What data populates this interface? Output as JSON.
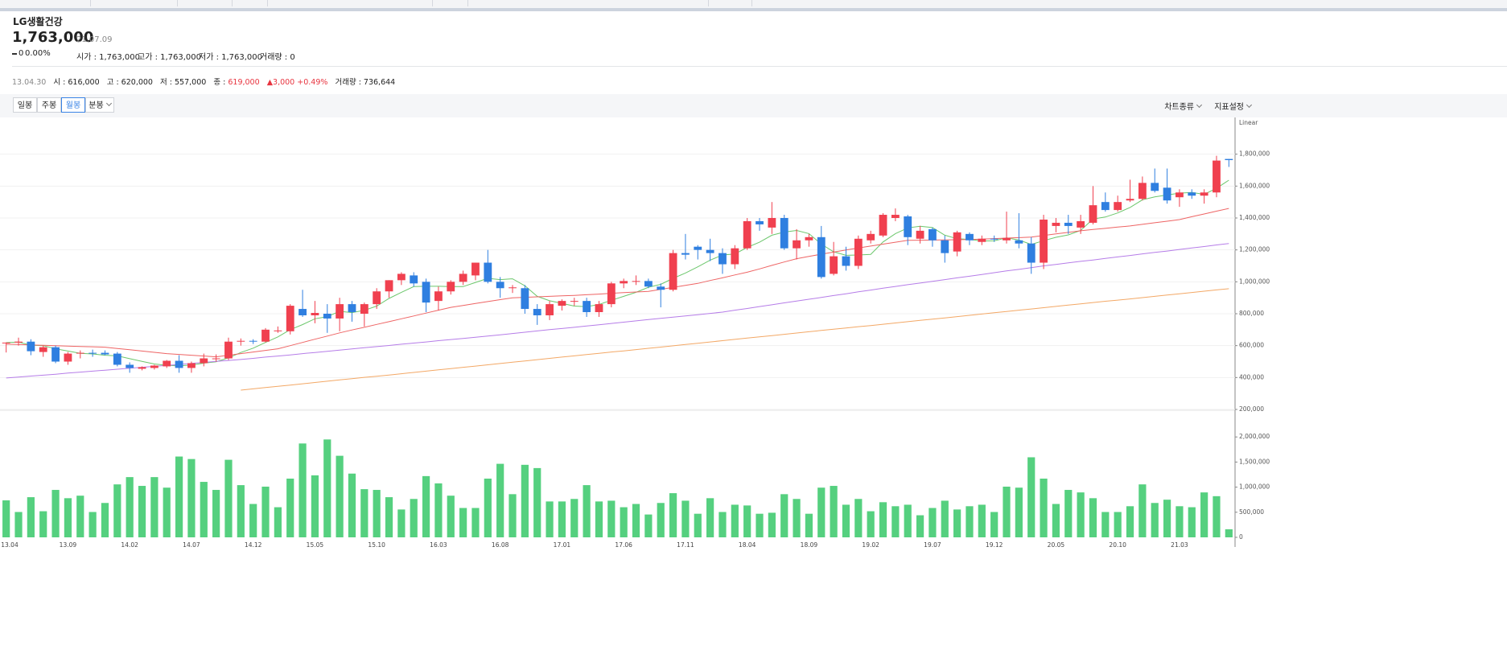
{
  "header": {
    "name": "LG생활건강",
    "price": "1,763,000",
    "date": "21.07.09",
    "change": "0",
    "change_rate": "0.00%",
    "open": "시가 : 1,763,000",
    "high": "고가 : 1,763,000",
    "low": "저가 : 1,763,000",
    "volume": "거래량 : 0"
  },
  "info": {
    "date": "13.04.30",
    "open": "시 : 616,000",
    "high": "고 : 620,000",
    "low": "저 : 557,000",
    "close_label": "종 :",
    "close": "619,000",
    "change": "▲3,000",
    "change_rate": "+0.49%",
    "volume": "거래량 : 736,644"
  },
  "toolbar": {
    "periods": [
      "일봉",
      "주봉",
      "월봉",
      "분봉"
    ],
    "selected": 2,
    "chart_type": "차트종류",
    "indicators": "지표설정"
  },
  "chart_data": {
    "type": "candlestick",
    "scale_label": "Linear",
    "up_color": "#f0404f",
    "down_color": "#2f7fe0",
    "volume_color": "#55d07f",
    "grid": true,
    "categories": [
      "13.04",
      null,
      null,
      null,
      null,
      "13.09",
      null,
      null,
      null,
      null,
      "14.02",
      null,
      null,
      null,
      null,
      "14.07",
      null,
      null,
      null,
      null,
      "14.12",
      null,
      null,
      null,
      null,
      "15.05",
      null,
      null,
      null,
      null,
      "15.10",
      null,
      null,
      null,
      null,
      "16.03",
      null,
      null,
      null,
      null,
      "16.08",
      null,
      null,
      null,
      null,
      "17.01",
      null,
      null,
      null,
      null,
      "17.06",
      null,
      null,
      null,
      null,
      "17.11",
      null,
      null,
      null,
      null,
      "18.04",
      null,
      null,
      null,
      null,
      "18.09",
      null,
      null,
      null,
      null,
      "19.02",
      null,
      null,
      null,
      null,
      "19.07",
      null,
      null,
      null,
      null,
      "19.12",
      null,
      null,
      null,
      null,
      "20.05",
      null,
      null,
      null,
      null,
      "20.10",
      null,
      null,
      null,
      null,
      "21.03",
      null,
      null,
      null,
      null
    ],
    "open": [
      616000,
      619000,
      625000,
      560000,
      590000,
      500000,
      550000,
      555000,
      555000,
      550000,
      480000,
      455000,
      460000,
      470000,
      505000,
      460000,
      490000,
      515000,
      520000,
      625000,
      630000,
      625000,
      690000,
      690000,
      830000,
      790000,
      800000,
      770000,
      860000,
      800000,
      860000,
      940000,
      1010000,
      1040000,
      1000000,
      880000,
      940000,
      1000000,
      1040000,
      1120000,
      1000000,
      960000,
      960000,
      830000,
      790000,
      850000,
      875000,
      880000,
      810000,
      860000,
      990000,
      1000000,
      1005000,
      970000,
      950000,
      1180000,
      1220000,
      1200000,
      1180000,
      1110000,
      1210000,
      1380000,
      1340000,
      1400000,
      1210000,
      1260000,
      1280000,
      1050000,
      1160000,
      1100000,
      1260000,
      1290000,
      1400000,
      1410000,
      1270000,
      1330000,
      1260000,
      1190000,
      1300000,
      1250000,
      1270000,
      1260000,
      1260000,
      1240000,
      1120000,
      1350000,
      1370000,
      1340000,
      1370000,
      1500000,
      1450000,
      1510000,
      1520000,
      1620000,
      1590000,
      1530000,
      1560000,
      1540000,
      1560000,
      1770000
    ],
    "high": [
      620000,
      650000,
      640000,
      600000,
      600000,
      560000,
      570000,
      575000,
      570000,
      560000,
      495000,
      470000,
      480000,
      510000,
      540000,
      500000,
      550000,
      545000,
      650000,
      645000,
      640000,
      710000,
      720000,
      860000,
      950000,
      880000,
      860000,
      900000,
      880000,
      870000,
      960000,
      1010000,
      1060000,
      1060000,
      1020000,
      970000,
      1010000,
      1070000,
      1120000,
      1200000,
      1030000,
      980000,
      980000,
      860000,
      880000,
      890000,
      900000,
      900000,
      880000,
      1000000,
      1020000,
      1040000,
      1020000,
      990000,
      1200000,
      1300000,
      1230000,
      1270000,
      1210000,
      1230000,
      1400000,
      1400000,
      1500000,
      1420000,
      1330000,
      1300000,
      1350000,
      1250000,
      1220000,
      1290000,
      1320000,
      1430000,
      1460000,
      1420000,
      1350000,
      1340000,
      1290000,
      1320000,
      1310000,
      1290000,
      1290000,
      1440000,
      1430000,
      1280000,
      1420000,
      1400000,
      1420000,
      1420000,
      1600000,
      1560000,
      1540000,
      1640000,
      1660000,
      1710000,
      1710000,
      1580000,
      1580000,
      1580000,
      1790000,
      1770000
    ],
    "low": [
      557000,
      600000,
      540000,
      530000,
      490000,
      480000,
      520000,
      530000,
      540000,
      470000,
      430000,
      445000,
      450000,
      460000,
      430000,
      430000,
      470000,
      500000,
      510000,
      600000,
      610000,
      620000,
      680000,
      670000,
      780000,
      740000,
      680000,
      690000,
      750000,
      720000,
      830000,
      900000,
      980000,
      970000,
      810000,
      820000,
      920000,
      980000,
      1010000,
      990000,
      900000,
      930000,
      800000,
      730000,
      760000,
      820000,
      850000,
      780000,
      780000,
      840000,
      960000,
      980000,
      960000,
      840000,
      940000,
      1140000,
      1140000,
      1130000,
      1050000,
      1080000,
      1200000,
      1320000,
      1300000,
      1200000,
      1140000,
      1220000,
      1020000,
      1040000,
      1070000,
      1080000,
      1240000,
      1280000,
      1380000,
      1230000,
      1240000,
      1220000,
      1120000,
      1160000,
      1230000,
      1230000,
      1250000,
      1240000,
      1210000,
      1050000,
      1080000,
      1310000,
      1300000,
      1300000,
      1360000,
      1440000,
      1440000,
      1500000,
      1510000,
      1560000,
      1490000,
      1470000,
      1520000,
      1490000,
      1530000,
      1720000
    ],
    "close": [
      619000,
      625000,
      565000,
      590000,
      500000,
      550000,
      555000,
      550000,
      545000,
      480000,
      460000,
      465000,
      475000,
      505000,
      460000,
      490000,
      520000,
      520000,
      625000,
      630000,
      625000,
      700000,
      695000,
      850000,
      790000,
      805000,
      770000,
      860000,
      810000,
      860000,
      940000,
      1010000,
      1050000,
      990000,
      870000,
      940000,
      1000000,
      1050000,
      1120000,
      1000000,
      960000,
      965000,
      830000,
      790000,
      860000,
      880000,
      880000,
      810000,
      860000,
      990000,
      1005000,
      1005000,
      970000,
      950000,
      1180000,
      1170000,
      1200000,
      1180000,
      1110000,
      1210000,
      1380000,
      1360000,
      1400000,
      1210000,
      1260000,
      1280000,
      1030000,
      1160000,
      1100000,
      1270000,
      1300000,
      1420000,
      1420000,
      1280000,
      1320000,
      1260000,
      1180000,
      1310000,
      1260000,
      1270000,
      1265000,
      1275000,
      1240000,
      1120000,
      1390000,
      1370000,
      1350000,
      1380000,
      1480000,
      1450000,
      1500000,
      1520000,
      1620000,
      1570000,
      1510000,
      1560000,
      1540000,
      1560000,
      1760000,
      1763000
    ],
    "volume": [
      736644,
      505000,
      800000,
      520000,
      945000,
      780000,
      830000,
      505000,
      685000,
      1055000,
      1200000,
      1025000,
      1200000,
      990000,
      1610000,
      1560000,
      1105000,
      945000,
      1545000,
      1040000,
      665000,
      1010000,
      600000,
      1170000,
      1870000,
      1235000,
      1950000,
      1625000,
      1270000,
      960000,
      945000,
      800000,
      555000,
      765000,
      1220000,
      1075000,
      830000,
      585000,
      585000,
      1170000,
      1465000,
      860000,
      1445000,
      1380000,
      715000,
      715000,
      765000,
      1040000,
      715000,
      730000,
      600000,
      665000,
      455000,
      685000,
      880000,
      730000,
      470000,
      780000,
      505000,
      650000,
      635000,
      470000,
      490000,
      860000,
      765000,
      470000,
      990000,
      1025000,
      650000,
      765000,
      520000,
      700000,
      620000,
      650000,
      440000,
      585000,
      730000,
      555000,
      620000,
      650000,
      505000,
      1010000,
      990000,
      1595000,
      1170000,
      665000,
      945000,
      895000,
      780000,
      505000,
      505000,
      620000,
      1055000,
      685000,
      750000,
      620000,
      600000,
      895000,
      820000,
      160000
    ],
    "lines": [
      {
        "color": "#6cc76c",
        "values": [
          619000,
          622000,
          603000,
          600000,
          580000,
          566000,
          552000,
          548000,
          540000,
          536000,
          518000,
          501000,
          485000,
          477000,
          473000,
          479000,
          490000,
          499000,
          523000,
          557000,
          584000,
          620000,
          655000,
          700000,
          732000,
          768000,
          782000,
          815000,
          807000,
          821000,
          848000,
          896000,
          934000,
          970000,
          972000,
          972000,
          970000,
          970000,
          996000,
          1022000,
          1014000,
          1019000,
          975000,
          909000,
          881000,
          865000,
          848000,
          844000,
          858000,
          884000,
          909000,
          934000,
          966000,
          984000,
          1022000,
          1055000,
          1094000,
          1136000,
          1168000,
          1174000,
          1216000,
          1248000,
          1292000,
          1312000,
          1322000,
          1302000,
          1236000,
          1188000,
          1166000,
          1168000,
          1172000,
          1250000,
          1302000,
          1338000,
          1348000,
          1340000,
          1292000,
          1270000,
          1266000,
          1256000,
          1257000,
          1276000,
          1262000,
          1234000,
          1258000,
          1279000,
          1294000,
          1322000,
          1394000,
          1406000,
          1432000,
          1466000,
          1514000,
          1532000,
          1544000,
          1556000,
          1560000,
          1548000,
          1586000,
          1637000
        ]
      },
      {
        "color": "#ee6464",
        "values": [
          609000,
          607000,
          604000,
          602000,
          600000,
          597000,
          595000,
          593000,
          590000,
          582000,
          574000,
          566000,
          558000,
          550000,
          545000,
          540000,
          535000,
          530000,
          540000,
          550000,
          560000,
          570000,
          580000,
          600000,
          620000,
          640000,
          660000,
          680000,
          698000,
          715000,
          733000,
          750000,
          768000,
          786000,
          804000,
          822000,
          840000,
          852000,
          864000,
          876000,
          888000,
          900000,
          903000,
          906000,
          909000,
          912000,
          915000,
          919000,
          923000,
          928000,
          932000,
          936000,
          940000,
          953000,
          965000,
          978000,
          990000,
          1008000,
          1025000,
          1043000,
          1060000,
          1081000,
          1103000,
          1124000,
          1145000,
          1159000,
          1173000,
          1186000,
          1200000,
          1212000,
          1224000,
          1236000,
          1248000,
          1260000,
          1261000,
          1262000,
          1263000,
          1264000,
          1265000,
          1268000,
          1271000,
          1274000,
          1277000,
          1280000,
          1290000,
          1300000,
          1310000,
          1320000,
          1328000,
          1335000,
          1343000,
          1350000,
          1360000,
          1370000,
          1380000,
          1390000,
          1408000,
          1425000,
          1443000,
          1460000
        ]
      },
      {
        "color": "#b67de8",
        "values": [
          397000,
          403000,
          409000,
          415000,
          421000,
          428000,
          434000,
          440000,
          446000,
          452000,
          458000,
          464000,
          470000,
          476000,
          482000,
          489000,
          495000,
          501000,
          507000,
          513000,
          520000,
          528000,
          535000,
          542000,
          550000,
          557000,
          564000,
          572000,
          579000,
          587000,
          594000,
          601000,
          609000,
          616000,
          623000,
          631000,
          638000,
          645000,
          653000,
          660000,
          668000,
          676000,
          684000,
          692000,
          700000,
          707000,
          715000,
          723000,
          731000,
          739000,
          747000,
          755000,
          763000,
          771000,
          779000,
          786000,
          794000,
          802000,
          810000,
          822000,
          833000,
          845000,
          856000,
          868000,
          879000,
          891000,
          902000,
          914000,
          925000,
          937000,
          948000,
          960000,
          971000,
          982000,
          992000,
          1003000,
          1014000,
          1025000,
          1035000,
          1046000,
          1057000,
          1068000,
          1078000,
          1089000,
          1100000,
          1109000,
          1119000,
          1128000,
          1137000,
          1147000,
          1156000,
          1165000,
          1175000,
          1184000,
          1193000,
          1203000,
          1212000,
          1221000,
          1231000,
          1240000
        ]
      },
      {
        "color": "#f3a866",
        "values": [
          null,
          null,
          null,
          null,
          null,
          null,
          null,
          null,
          null,
          null,
          null,
          null,
          null,
          null,
          null,
          null,
          null,
          null,
          null,
          321000,
          329000,
          337000,
          345000,
          353000,
          361000,
          369000,
          377000,
          385000,
          393000,
          401000,
          408000,
          416000,
          424000,
          432000,
          440000,
          448000,
          456000,
          464000,
          472000,
          480000,
          488000,
          496000,
          504000,
          512000,
          520000,
          528000,
          536000,
          544000,
          552000,
          560000,
          567000,
          575000,
          583000,
          591000,
          599000,
          607000,
          615000,
          623000,
          631000,
          639000,
          647000,
          655000,
          663000,
          671000,
          679000,
          687000,
          695000,
          703000,
          711000,
          719000,
          726000,
          734000,
          742000,
          750000,
          758000,
          766000,
          774000,
          782000,
          790000,
          798000,
          806000,
          814000,
          822000,
          830000,
          838000,
          846000,
          854000,
          862000,
          870000,
          878000,
          885000,
          893000,
          901000,
          909000,
          917000,
          925000,
          933000,
          941000,
          949000,
          957000
        ]
      }
    ],
    "ylim": [
      200000,
      2000000
    ],
    "yticks": [
      {
        "value": 200000,
        "label": "200,000"
      },
      {
        "value": 400000,
        "label": "400,000"
      },
      {
        "value": 600000,
        "label": "600,000"
      },
      {
        "value": 800000,
        "label": "800,000"
      },
      {
        "value": 1000000,
        "label": "1,000,000"
      },
      {
        "value": 1200000,
        "label": "1,200,000"
      },
      {
        "value": 1400000,
        "label": "1,400,000"
      },
      {
        "value": 1600000,
        "label": "1,600,000"
      },
      {
        "value": 1800000,
        "label": "1,800,000"
      }
    ],
    "y2lim": [
      0,
      2500000
    ],
    "y2ticks": [
      0,
      {
        "value": 500000,
        "label": "500,000"
      },
      {
        "value": 1000000,
        "label": "1,000,000"
      },
      {
        "value": 1500000,
        "label": "1,500,000"
      },
      {
        "value": 2000000,
        "label": "2,000,000"
      }
    ]
  }
}
